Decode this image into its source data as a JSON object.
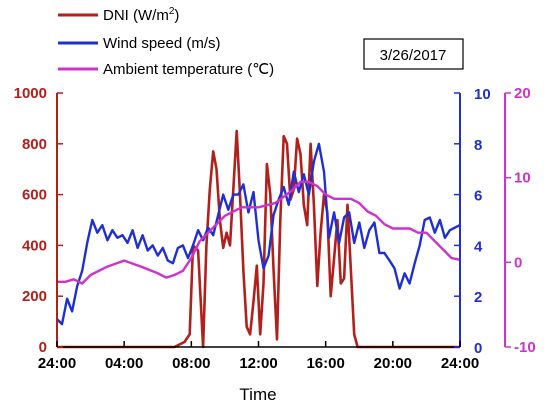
{
  "chart_data": {
    "type": "line",
    "xlabel": "Time",
    "date_label": "3/26/2017",
    "x_ticks": [
      "24:00",
      "04:00",
      "08:00",
      "12:00",
      "16:00",
      "20:00",
      "24:00"
    ],
    "x_tick_hours": [
      0,
      4,
      8,
      12,
      16,
      20,
      24
    ],
    "xlim": [
      0,
      24
    ],
    "axes": {
      "left": {
        "ylim": [
          0,
          1000
        ],
        "ticks": [
          "0",
          "200",
          "400",
          "600",
          "800",
          "1000"
        ],
        "tick_values": [
          0,
          200,
          400,
          600,
          800,
          1000
        ],
        "color": "#b2201c"
      },
      "right1": {
        "ylim": [
          0,
          10
        ],
        "ticks": [
          "0",
          "2",
          "4",
          "6",
          "8",
          "10"
        ],
        "tick_values": [
          0,
          2,
          4,
          6,
          8,
          10
        ],
        "color": "#1f2fd2"
      },
      "right2": {
        "ylim": [
          -10,
          20
        ],
        "ticks": [
          "-10",
          "0",
          "10",
          "20"
        ],
        "tick_values": [
          -10,
          0,
          10,
          20
        ],
        "color": "#cc33cc"
      }
    },
    "series": [
      {
        "name": "DNI (W/m²)",
        "name_main": "DNI (W/m",
        "name_sup": "2",
        "name_tail": ")",
        "axis": "left",
        "color": "#b2201c",
        "x": [
          0,
          7,
          7.6,
          7.9,
          8.1,
          8.4,
          8.7,
          8.9,
          9.1,
          9.3,
          9.5,
          9.7,
          9.9,
          10.1,
          10.3,
          10.5,
          10.7,
          10.9,
          11.1,
          11.3,
          11.5,
          11.7,
          11.9,
          12.1,
          12.3,
          12.5,
          12.7,
          12.9,
          13.1,
          13.3,
          13.5,
          13.7,
          13.9,
          14.1,
          14.3,
          14.5,
          14.7,
          14.9,
          15.1,
          15.3,
          15.5,
          15.7,
          15.9,
          16.1,
          16.3,
          16.5,
          16.7,
          16.9,
          17.1,
          17.3,
          17.5,
          17.7,
          17.9,
          24
        ],
        "y": [
          0,
          0,
          20,
          50,
          400,
          380,
          0,
          400,
          620,
          770,
          700,
          500,
          390,
          450,
          400,
          620,
          850,
          600,
          300,
          80,
          50,
          180,
          320,
          50,
          250,
          720,
          600,
          300,
          30,
          500,
          830,
          800,
          580,
          620,
          820,
          760,
          560,
          480,
          800,
          560,
          240,
          450,
          600,
          530,
          200,
          350,
          500,
          250,
          270,
          560,
          300,
          50,
          0,
          0
        ]
      },
      {
        "name": "Wind speed (m/s)",
        "axis": "right1",
        "color": "#1f2fd2",
        "x": [
          0,
          0.3,
          0.6,
          0.9,
          1.2,
          1.5,
          1.8,
          2.1,
          2.4,
          2.7,
          3.0,
          3.3,
          3.6,
          3.9,
          4.2,
          4.5,
          4.8,
          5.1,
          5.4,
          5.7,
          6.0,
          6.3,
          6.6,
          6.9,
          7.2,
          7.5,
          7.8,
          8.1,
          8.4,
          8.7,
          9.0,
          9.3,
          9.6,
          9.9,
          10.2,
          10.5,
          10.8,
          11.1,
          11.4,
          11.7,
          12.0,
          12.3,
          12.6,
          12.9,
          13.2,
          13.5,
          13.8,
          14.1,
          14.4,
          14.7,
          15.0,
          15.3,
          15.6,
          15.9,
          16.2,
          16.5,
          16.8,
          17.1,
          17.4,
          17.7,
          18.0,
          18.3,
          18.6,
          18.9,
          19.2,
          19.5,
          19.8,
          20.1,
          20.4,
          20.7,
          21.0,
          21.3,
          21.6,
          21.9,
          22.2,
          22.5,
          22.8,
          23.1,
          23.4,
          23.7,
          24.0
        ],
        "y": [
          1.1,
          0.9,
          1.9,
          1.4,
          2.4,
          3.0,
          4.1,
          5.0,
          4.5,
          4.8,
          4.2,
          4.6,
          4.3,
          4.4,
          4.1,
          4.6,
          3.9,
          4.4,
          3.8,
          4.0,
          3.6,
          3.9,
          3.4,
          3.3,
          3.9,
          4.0,
          3.5,
          4.0,
          4.6,
          4.2,
          4.7,
          4.4,
          5.2,
          6.0,
          5.4,
          6.0,
          6.0,
          6.4,
          5.3,
          6.1,
          4.2,
          3.1,
          3.6,
          5.2,
          5.8,
          6.3,
          5.6,
          6.9,
          6.1,
          6.8,
          6.0,
          7.3,
          8.0,
          6.9,
          4.3,
          5.3,
          4.1,
          5.1,
          5.3,
          4.1,
          4.9,
          3.9,
          4.6,
          4.9,
          3.7,
          3.7,
          3.4,
          3.1,
          2.3,
          2.9,
          2.5,
          3.3,
          4.0,
          5.0,
          5.1,
          4.5,
          5.0,
          4.3,
          4.6,
          4.7,
          4.8
        ]
      },
      {
        "name": "Ambient temperature (℃)",
        "axis": "right2",
        "color": "#cc33cc",
        "x": [
          0,
          0.5,
          1,
          1.5,
          2,
          3,
          4,
          5,
          6,
          6.5,
          7,
          7.5,
          8,
          8.5,
          9,
          9.5,
          10,
          11,
          12,
          13,
          14,
          14.5,
          15,
          15.5,
          16,
          16.5,
          17,
          17.5,
          18,
          18.5,
          19,
          19.5,
          20,
          20.5,
          21,
          21.5,
          22,
          22.5,
          23,
          23.5,
          24
        ],
        "y": [
          -2.3,
          -2.3,
          -2.0,
          -2.5,
          -1.5,
          -0.5,
          0.2,
          -0.5,
          -1.3,
          -1.8,
          -1.5,
          -1.0,
          0.5,
          2.5,
          3.5,
          4.5,
          5.5,
          6.5,
          6.5,
          7.0,
          8.5,
          9.5,
          9.5,
          9.0,
          8.0,
          7.5,
          7.5,
          7.5,
          7.0,
          6.0,
          5.5,
          4.5,
          4.0,
          4.0,
          4.0,
          3.5,
          3.5,
          2.5,
          1.5,
          0.5,
          0.3
        ]
      }
    ],
    "legend_position": "top-left"
  }
}
